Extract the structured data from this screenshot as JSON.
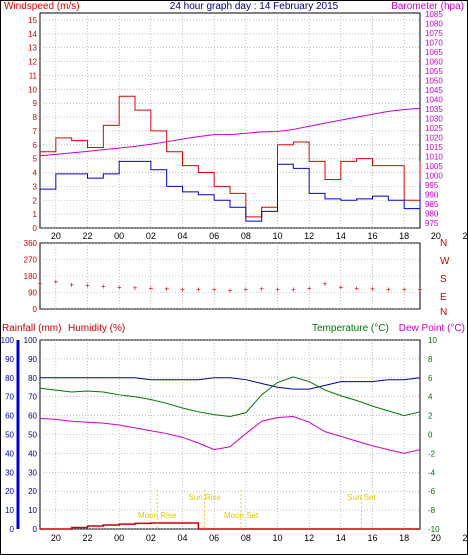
{
  "colors": {
    "wind": "#dd0000",
    "gust_line": "#0000cc",
    "baro": "#cc00cc",
    "dir": "#dd0000",
    "temp": "#007700",
    "dew": "#cc00cc",
    "humidity": "#000099",
    "rain": "#cc0000",
    "moon_sun": "#ddcc00",
    "grid": "#999999",
    "left_axis": "#cc0000",
    "rain_axis": "#0000cc"
  },
  "header": {
    "left_label": "Windspeed (m/s)",
    "title": "24 hour graph day : 14 February 2015",
    "right_label": "Barometer (hpa)"
  },
  "x_ticks": [
    "20",
    "22",
    "00",
    "02",
    "04",
    "06",
    "08",
    "10",
    "12",
    "14",
    "16",
    "18",
    "20",
    "22",
    "00"
  ],
  "wind_panel": {
    "y_ticks": [
      "15",
      "14",
      "13",
      "12",
      "11",
      "10",
      "9",
      "8",
      "7",
      "6",
      "5",
      "4",
      "3",
      "2",
      "1",
      "0"
    ],
    "baro_ticks": [
      "1085",
      "1080",
      "1075",
      "1070",
      "1065",
      "1060",
      "1055",
      "1050",
      "1045",
      "1040",
      "1035",
      "1030",
      "1025",
      "1020",
      "1015",
      "1010",
      "1005",
      "1000",
      "995",
      "990",
      "985",
      "980",
      "975"
    ],
    "visible_baro_ticks": [
      "1085",
      "1080",
      "1075",
      "1070",
      "1065",
      "1060",
      "1055",
      "1050",
      "1045",
      "1040",
      "1035",
      "1030",
      "1025",
      "1020",
      "1015",
      "1010",
      "1005",
      "1000",
      "995",
      "990",
      "985",
      "980",
      "975"
    ]
  },
  "dir_panel": {
    "y_ticks": [
      "360",
      "270",
      "180",
      "90",
      "0"
    ],
    "compass": [
      "N",
      "W",
      "S",
      "E",
      "N"
    ]
  },
  "bottom_panel": {
    "left_label_1": "Rainfall (mm)",
    "left_label_2": "Humidity (%)",
    "right_label_1": "Temperature (°C)",
    "right_label_2": "Dew Point (°C)",
    "rain_ticks": [
      "100",
      "90",
      "80",
      "70",
      "60",
      "50",
      "40",
      "30",
      "20",
      "10",
      "0"
    ],
    "hum_ticks": [
      "100",
      "90",
      "80",
      "70",
      "60",
      "50",
      "40",
      "30",
      "20",
      "10",
      "0"
    ],
    "temp_ticks": [
      "10",
      "8",
      "6",
      "4",
      "2",
      "0",
      "-2",
      "-4",
      "-6",
      "-8",
      "-10"
    ],
    "events": {
      "sun_rise": "Sun Rise",
      "sun_set": "Sun Set",
      "moon_rise": "Moon Rise",
      "moon_set": "Moon Set"
    }
  },
  "chart_data": [
    {
      "type": "line",
      "title": "24 hour graph day : 14 February 2015",
      "xlabel": "",
      "ylabel": "Windspeed (m/s)",
      "y2label": "Barometer (hpa)",
      "x_hours": [
        19,
        20,
        21,
        22,
        23,
        24,
        25,
        26,
        27,
        28,
        29,
        30,
        31,
        32,
        33,
        34,
        35,
        36,
        37,
        38,
        39,
        40,
        41,
        42,
        43
      ],
      "ylim": [
        0,
        15.5
      ],
      "y2lim": [
        972.5,
        1085.5
      ],
      "series": [
        {
          "name": "Windspeed (m/s)",
          "values": [
            5.5,
            6.5,
            6.3,
            5.8,
            7.4,
            9.5,
            8.5,
            7.0,
            5.5,
            4.5,
            4.0,
            3.0,
            2.5,
            0.8,
            1.5,
            6.0,
            6.2,
            4.8,
            3.5,
            4.8,
            5.0,
            4.5,
            4.5,
            2.0,
            4.8
          ]
        },
        {
          "name": "Gust",
          "values": [
            2.8,
            3.9,
            3.9,
            3.6,
            3.9,
            4.8,
            4.8,
            4.2,
            3.0,
            2.6,
            2.4,
            2.0,
            1.5,
            0.5,
            1.2,
            4.6,
            4.3,
            2.5,
            2.1,
            2.0,
            2.1,
            2.3,
            2.0,
            1.4,
            3.3
          ]
        },
        {
          "name": "Barometer (hpa)",
          "values": [
            1010.5,
            1011.2,
            1012.0,
            1012.8,
            1013.7,
            1014.5,
            1015.4,
            1016.5,
            1017.8,
            1019.3,
            1020.5,
            1021.6,
            1021.6,
            1022.3,
            1023.0,
            1023.2,
            1024.3,
            1026.0,
            1027.6,
            1029.2,
            1030.8,
            1032.3,
            1033.8,
            1034.8,
            1035.4
          ]
        }
      ]
    },
    {
      "type": "scatter",
      "ylabel": "Wind Direction",
      "ylim": [
        0,
        360
      ],
      "x_hours": [
        19,
        20,
        21,
        22,
        23,
        24,
        25,
        26,
        27,
        28,
        29,
        30,
        31,
        32,
        33,
        34,
        35,
        36,
        37,
        38,
        39,
        40,
        41,
        42,
        43
      ],
      "values": [
        140,
        150,
        135,
        130,
        125,
        120,
        118,
        115,
        112,
        108,
        110,
        108,
        105,
        110,
        112,
        110,
        108,
        115,
        140,
        120,
        115,
        112,
        110,
        108,
        110
      ]
    },
    {
      "type": "line",
      "ylabel": "Rainfall (mm) / Humidity (%)",
      "y2label": "Temperature (°C) / Dew Point (°C)",
      "x_hours": [
        19,
        20,
        21,
        22,
        23,
        24,
        25,
        26,
        27,
        28,
        29,
        30,
        31,
        32,
        33,
        34,
        35,
        36,
        37,
        38,
        39,
        40,
        41,
        42,
        43
      ],
      "ylim": [
        0,
        100
      ],
      "y2lim": [
        -10,
        10
      ],
      "series": [
        {
          "name": "Humidity (%)",
          "values": [
            80,
            80,
            80,
            80,
            80,
            80,
            80,
            79,
            79,
            79,
            79,
            80,
            80,
            79,
            77,
            75,
            74,
            74,
            76,
            78,
            78,
            78,
            79,
            79,
            80
          ]
        },
        {
          "name": "Temperature (°C)",
          "values": [
            4.9,
            4.7,
            4.5,
            4.6,
            4.5,
            4.2,
            4.0,
            3.7,
            3.3,
            2.8,
            2.4,
            2.1,
            1.9,
            2.3,
            4.2,
            5.5,
            6.1,
            5.6,
            4.7,
            4.1,
            3.6,
            3.0,
            2.5,
            2.0,
            2.4
          ]
        },
        {
          "name": "Dew Point (°C)",
          "values": [
            1.7,
            1.6,
            1.4,
            1.3,
            1.2,
            1.0,
            0.7,
            0.4,
            0.1,
            -0.3,
            -0.9,
            -1.6,
            -1.3,
            0.1,
            1.4,
            1.8,
            1.9,
            1.3,
            0.3,
            -0.2,
            -0.7,
            -1.2,
            -1.6,
            -2.0,
            -1.6
          ]
        },
        {
          "name": "Rainfall (mm)",
          "values": [
            0,
            0,
            0.8,
            1.6,
            2.1,
            2.6,
            3.0,
            3.2,
            3.2,
            3.2,
            0,
            0,
            0,
            0,
            0,
            0,
            0,
            0,
            0,
            0,
            0,
            0,
            0,
            0,
            0
          ]
        }
      ]
    }
  ]
}
